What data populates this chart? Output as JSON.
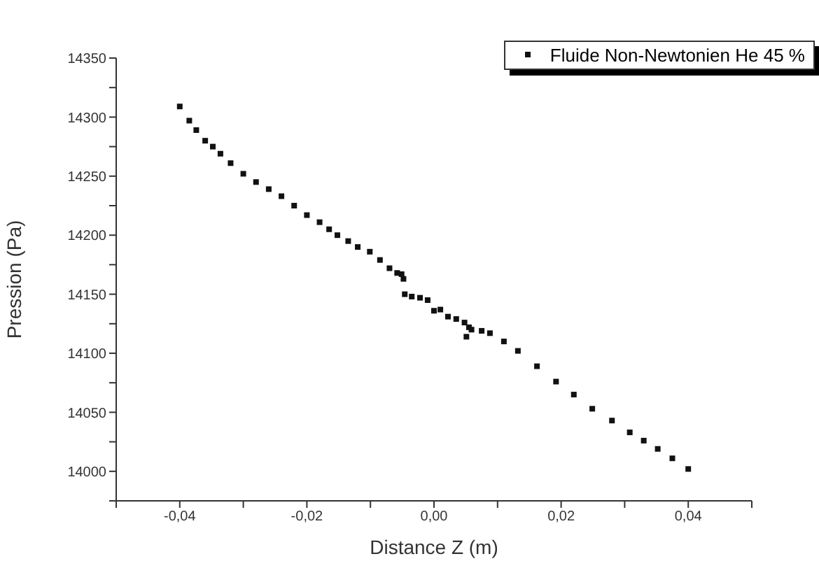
{
  "chart_data": {
    "type": "scatter",
    "xlabel": "Distance Z (m)",
    "ylabel": "Pression (Pa)",
    "x": [
      -0.04,
      -0.0385,
      -0.0374,
      -0.036,
      -0.0348,
      -0.0336,
      -0.032,
      -0.03,
      -0.028,
      -0.026,
      -0.024,
      -0.022,
      -0.02,
      -0.018,
      -0.0165,
      -0.0152,
      -0.0135,
      -0.012,
      -0.0101,
      -0.0085,
      -0.007,
      -0.0058,
      -0.0051,
      -0.0048,
      -0.0046,
      -0.0035,
      -0.0022,
      -0.001,
      0.0,
      0.001,
      0.0022,
      0.0035,
      0.0048,
      0.0051,
      0.0055,
      0.0059,
      0.0075,
      0.0088,
      0.011,
      0.0132,
      0.0162,
      0.0192,
      0.022,
      0.0249,
      0.028,
      0.0308,
      0.033,
      0.0352,
      0.0375,
      0.04
    ],
    "series": [
      {
        "name": "Fluide Non-Newtonien He 45 %",
        "color": "#111111",
        "values": [
          14309,
          14297,
          14289,
          14280,
          14275,
          14269,
          14261,
          14252,
          14245,
          14239,
          14233,
          14225,
          14217,
          14211,
          14205,
          14200,
          14195,
          14190,
          14186,
          14179,
          14172,
          14168,
          14167,
          14163,
          14150,
          14148,
          14147,
          14145,
          14136,
          14137,
          14131,
          14129,
          14126,
          14114,
          14122,
          14120,
          14119,
          14117,
          14110,
          14102,
          14089,
          14076,
          14065,
          14053,
          14043,
          14033,
          14026,
          14019,
          14011,
          14002
        ]
      }
    ],
    "xlim": [
      -0.05,
      0.05
    ],
    "xticks": [
      {
        "value": -0.05,
        "label": null
      },
      {
        "value": -0.04,
        "label": "-0,04"
      },
      {
        "value": -0.03,
        "label": null
      },
      {
        "value": -0.02,
        "label": "-0,02"
      },
      {
        "value": -0.01,
        "label": null
      },
      {
        "value": 0,
        "label": "0,00"
      },
      {
        "value": 0.01,
        "label": null
      },
      {
        "value": 0.02,
        "label": "0,02"
      },
      {
        "value": 0.03,
        "label": null
      },
      {
        "value": 0.04,
        "label": "0,04"
      },
      {
        "value": 0.05,
        "label": null
      }
    ],
    "ylim": [
      13975,
      14350
    ],
    "yticks": [
      {
        "value": 13975,
        "label": null
      },
      14000,
      {
        "value": 14025,
        "label": null
      },
      14050,
      {
        "value": 14075,
        "label": null
      },
      14100,
      {
        "value": 14125,
        "label": null
      },
      14150,
      {
        "value": 14175,
        "label": null
      },
      14200,
      {
        "value": 14225,
        "label": null
      },
      14250,
      {
        "value": 14275,
        "label": null
      },
      14300,
      {
        "value": 14325,
        "label": null
      },
      14350
    ],
    "grid": false,
    "legend": "top right",
    "marker": "square"
  }
}
